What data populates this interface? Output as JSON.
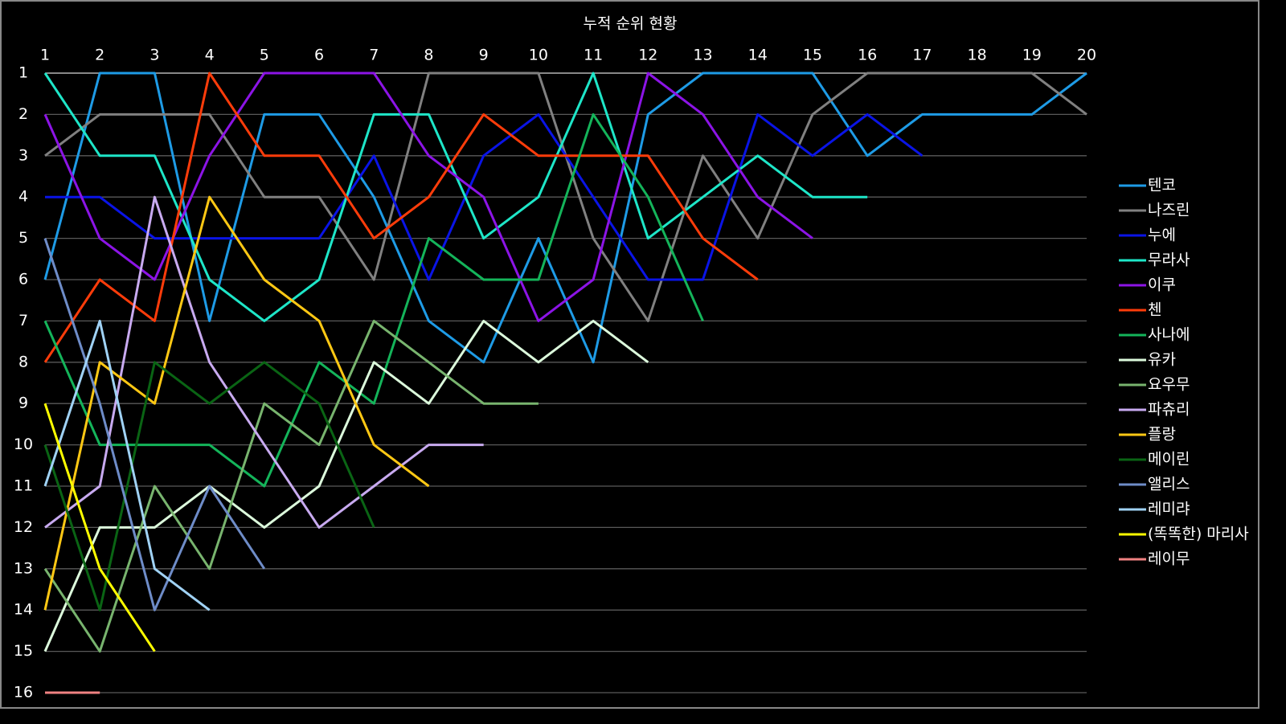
{
  "chart_data": {
    "type": "line",
    "title": "누적 순위 현황",
    "x": [
      1,
      2,
      3,
      4,
      5,
      6,
      7,
      8,
      9,
      10,
      11,
      12,
      13,
      14,
      15,
      16,
      17,
      18,
      19,
      20
    ],
    "xlim": [
      1,
      20
    ],
    "xticks": [
      1,
      2,
      3,
      4,
      5,
      6,
      7,
      8,
      9,
      10,
      11,
      12,
      13,
      14,
      15,
      16,
      17,
      18,
      19,
      20
    ],
    "ylim": [
      1,
      16
    ],
    "y_reversed": true,
    "yticks": [
      1,
      2,
      3,
      4,
      5,
      6,
      7,
      8,
      9,
      10,
      11,
      12,
      13,
      14,
      15,
      16
    ],
    "grid": true,
    "legend": "right",
    "series": [
      {
        "name": "텐코",
        "color": "#1e9be6",
        "values": [
          6,
          1,
          1,
          7,
          2,
          2,
          4,
          7,
          8,
          5,
          8,
          2,
          1,
          1,
          1,
          3,
          2,
          2,
          2,
          1
        ]
      },
      {
        "name": "나즈린",
        "color": "#808080",
        "values": [
          3,
          2,
          2,
          2,
          4,
          4,
          6,
          1,
          1,
          1,
          5,
          7,
          3,
          5,
          2,
          1,
          1,
          1,
          1,
          2
        ]
      },
      {
        "name": "누에",
        "color": "#0a14e6",
        "values": [
          4,
          4,
          5,
          5,
          5,
          5,
          3,
          6,
          3,
          2,
          4,
          6,
          6,
          2,
          3,
          2,
          3,
          null,
          null,
          null
        ]
      },
      {
        "name": "무라사",
        "color": "#1ee6c8",
        "values": [
          1,
          3,
          3,
          6,
          7,
          6,
          2,
          2,
          5,
          4,
          1,
          5,
          4,
          3,
          4,
          4,
          null,
          null,
          null,
          null
        ]
      },
      {
        "name": "이쿠",
        "color": "#8c14e6",
        "values": [
          2,
          5,
          6,
          3,
          1,
          1,
          1,
          3,
          4,
          7,
          6,
          1,
          2,
          4,
          5,
          null,
          null,
          null,
          null,
          null
        ]
      },
      {
        "name": "첸",
        "color": "#ff3c0a",
        "values": [
          8,
          6,
          7,
          1,
          3,
          3,
          5,
          4,
          2,
          3,
          3,
          3,
          5,
          6,
          null,
          null,
          null,
          null,
          null,
          null
        ]
      },
      {
        "name": "사나에",
        "color": "#14b45a",
        "values": [
          7,
          10,
          10,
          10,
          11,
          8,
          9,
          5,
          6,
          6,
          2,
          4,
          7,
          null,
          null,
          null,
          null,
          null,
          null,
          null
        ]
      },
      {
        "name": "유카",
        "color": "#dcfadc",
        "values": [
          15,
          12,
          12,
          11,
          12,
          11,
          8,
          9,
          7,
          8,
          7,
          8,
          null,
          null,
          null,
          null,
          null,
          null,
          null,
          null
        ]
      },
      {
        "name": "요우무",
        "color": "#78b46e",
        "values": [
          13,
          15,
          11,
          13,
          9,
          10,
          7,
          8,
          9,
          9,
          null,
          null,
          null,
          null,
          null,
          null,
          null,
          null,
          null,
          null
        ]
      },
      {
        "name": "파츄리",
        "color": "#c8aaf0",
        "values": [
          12,
          11,
          4,
          8,
          10,
          12,
          11,
          10,
          10,
          null,
          null,
          null,
          null,
          null,
          null,
          null,
          null,
          null,
          null,
          null
        ]
      },
      {
        "name": "플랑",
        "color": "#ffc814",
        "values": [
          14,
          8,
          9,
          4,
          6,
          7,
          10,
          11,
          null,
          null,
          null,
          null,
          null,
          null,
          null,
          null,
          null,
          null,
          null,
          null
        ]
      },
      {
        "name": "메이린",
        "color": "#0a6414",
        "values": [
          10,
          14,
          8,
          9,
          8,
          9,
          12,
          null,
          null,
          null,
          null,
          null,
          null,
          null,
          null,
          null,
          null,
          null,
          null,
          null
        ]
      },
      {
        "name": "앨리스",
        "color": "#6e8cc8",
        "values": [
          5,
          9,
          14,
          11,
          13,
          null,
          null,
          null,
          null,
          null,
          null,
          null,
          null,
          null,
          null,
          null,
          null,
          null,
          null,
          null
        ]
      },
      {
        "name": "레미랴",
        "color": "#a0d2f5",
        "values": [
          11,
          7,
          13,
          14,
          null,
          null,
          null,
          null,
          null,
          null,
          null,
          null,
          null,
          null,
          null,
          null,
          null,
          null,
          null,
          null
        ]
      },
      {
        "name": "(똑똑한) 마리사",
        "color": "#ffff00",
        "values": [
          9,
          13,
          15,
          null,
          null,
          null,
          null,
          null,
          null,
          null,
          null,
          null,
          null,
          null,
          null,
          null,
          null,
          null,
          null,
          null
        ]
      },
      {
        "name": "레이무",
        "color": "#f08282",
        "values": [
          16,
          16,
          null,
          null,
          null,
          null,
          null,
          null,
          null,
          null,
          null,
          null,
          null,
          null,
          null,
          null,
          null,
          null,
          null,
          null
        ]
      }
    ]
  }
}
